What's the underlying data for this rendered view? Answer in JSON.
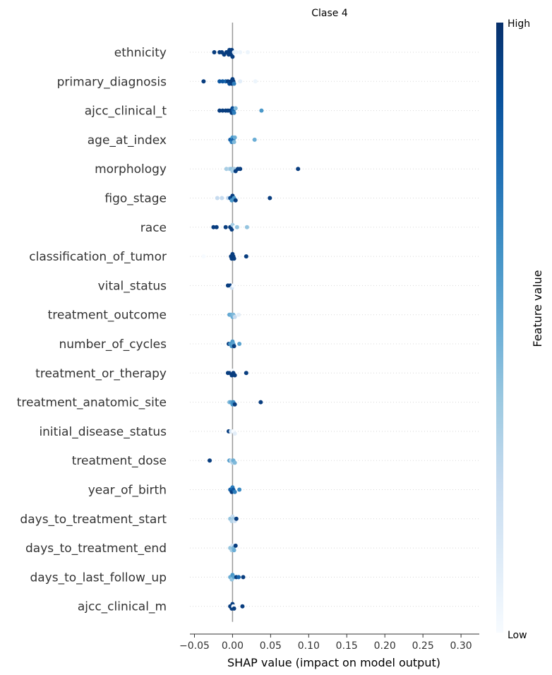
{
  "chart_data": {
    "type": "scatter",
    "title": "Clase 4",
    "xlabel": "SHAP value (impact on model output)",
    "xlim": [
      -0.056,
      0.324
    ],
    "xticks": [
      -0.05,
      0.0,
      0.05,
      0.1,
      0.15,
      0.2,
      0.25,
      0.3
    ],
    "xtick_labels": [
      "−0.05",
      "0.00",
      "0.05",
      "0.10",
      "0.15",
      "0.20",
      "0.25",
      "0.30"
    ],
    "grid": false,
    "colorbar": {
      "label": "Feature value",
      "high_label": "High",
      "low_label": "Low",
      "colors": [
        "#f7fbff",
        "#deebf7",
        "#c6dbef",
        "#9ecae1",
        "#6baed6",
        "#4292c6",
        "#2171b5",
        "#08519c",
        "#08306b"
      ]
    },
    "features": [
      {
        "name": "ethnicity",
        "points": [
          {
            "x": -0.024,
            "v": 0.95
          },
          {
            "x": -0.017,
            "v": 0.95
          },
          {
            "x": -0.014,
            "v": 0.95
          },
          {
            "x": -0.011,
            "v": 0.95
          },
          {
            "x": -0.008,
            "v": 0.95
          },
          {
            "x": -0.006,
            "v": 0.95
          },
          {
            "x": -0.005,
            "v": 0.95
          },
          {
            "x": -0.004,
            "v": 0.95
          },
          {
            "x": -0.003,
            "v": 0.95
          },
          {
            "x": -0.002,
            "v": 0.95
          },
          {
            "x": -0.001,
            "v": 0.95
          },
          {
            "x": 0.0,
            "v": 0.95
          },
          {
            "x": 0.002,
            "v": 0.1
          },
          {
            "x": 0.005,
            "v": 0.05
          },
          {
            "x": 0.01,
            "v": 0.05
          },
          {
            "x": 0.02,
            "v": 0.05
          }
        ]
      },
      {
        "name": "primary_diagnosis",
        "points": [
          {
            "x": -0.038,
            "v": 0.95
          },
          {
            "x": -0.017,
            "v": 0.85
          },
          {
            "x": -0.013,
            "v": 0.85
          },
          {
            "x": -0.009,
            "v": 0.8
          },
          {
            "x": -0.006,
            "v": 0.95
          },
          {
            "x": -0.004,
            "v": 0.9
          },
          {
            "x": -0.002,
            "v": 0.95
          },
          {
            "x": -0.001,
            "v": 0.95
          },
          {
            "x": 0.0,
            "v": 0.95
          },
          {
            "x": 0.001,
            "v": 0.95
          },
          {
            "x": 0.002,
            "v": 0.7
          },
          {
            "x": 0.01,
            "v": 0.1
          },
          {
            "x": 0.03,
            "v": 0.05
          }
        ]
      },
      {
        "name": "ajcc_clinical_t",
        "points": [
          {
            "x": -0.017,
            "v": 0.95
          },
          {
            "x": -0.013,
            "v": 0.95
          },
          {
            "x": -0.009,
            "v": 0.95
          },
          {
            "x": -0.006,
            "v": 0.95
          },
          {
            "x": -0.003,
            "v": 0.95
          },
          {
            "x": -0.001,
            "v": 0.95
          },
          {
            "x": 0.0,
            "v": 0.9
          },
          {
            "x": 0.001,
            "v": 0.8
          },
          {
            "x": 0.002,
            "v": 0.7
          },
          {
            "x": 0.004,
            "v": 0.45
          },
          {
            "x": 0.038,
            "v": 0.6
          }
        ]
      },
      {
        "name": "age_at_index",
        "points": [
          {
            "x": -0.003,
            "v": 0.8
          },
          {
            "x": -0.001,
            "v": 0.7
          },
          {
            "x": 0.0,
            "v": 0.6
          },
          {
            "x": 0.001,
            "v": 0.8
          },
          {
            "x": 0.002,
            "v": 0.45
          },
          {
            "x": 0.003,
            "v": 0.5
          },
          {
            "x": 0.029,
            "v": 0.5
          }
        ]
      },
      {
        "name": "morphology",
        "points": [
          {
            "x": -0.008,
            "v": 0.35
          },
          {
            "x": -0.004,
            "v": 0.3
          },
          {
            "x": -0.002,
            "v": 0.4
          },
          {
            "x": 0.0,
            "v": 0.35
          },
          {
            "x": 0.002,
            "v": 0.35
          },
          {
            "x": 0.004,
            "v": 0.95
          },
          {
            "x": 0.007,
            "v": 0.95
          },
          {
            "x": 0.01,
            "v": 0.95
          },
          {
            "x": 0.086,
            "v": 0.95
          }
        ]
      },
      {
        "name": "figo_stage",
        "points": [
          {
            "x": -0.02,
            "v": 0.25
          },
          {
            "x": -0.014,
            "v": 0.25
          },
          {
            "x": -0.006,
            "v": 0.25
          },
          {
            "x": -0.003,
            "v": 0.9
          },
          {
            "x": -0.001,
            "v": 0.6
          },
          {
            "x": 0.0,
            "v": 0.95
          },
          {
            "x": 0.002,
            "v": 0.6
          },
          {
            "x": 0.004,
            "v": 0.95
          },
          {
            "x": 0.049,
            "v": 0.95
          }
        ]
      },
      {
        "name": "race",
        "points": [
          {
            "x": -0.025,
            "v": 0.95
          },
          {
            "x": -0.021,
            "v": 0.95
          },
          {
            "x": -0.009,
            "v": 0.95
          },
          {
            "x": -0.003,
            "v": 0.95
          },
          {
            "x": -0.001,
            "v": 0.95
          },
          {
            "x": 0.0,
            "v": 0.35
          },
          {
            "x": 0.003,
            "v": 0.0
          },
          {
            "x": 0.006,
            "v": 0.4
          },
          {
            "x": 0.019,
            "v": 0.4
          }
        ]
      },
      {
        "name": "classification_of_tumor",
        "points": [
          {
            "x": -0.038,
            "v": 0.0
          },
          {
            "x": -0.002,
            "v": 0.95
          },
          {
            "x": -0.001,
            "v": 0.95
          },
          {
            "x": 0.0,
            "v": 0.95
          },
          {
            "x": 0.001,
            "v": 0.95
          },
          {
            "x": 0.002,
            "v": 0.95
          },
          {
            "x": 0.018,
            "v": 0.95
          }
        ]
      },
      {
        "name": "vital_status",
        "points": [
          {
            "x": -0.006,
            "v": 0.95
          },
          {
            "x": -0.003,
            "v": 0.95
          },
          {
            "x": -0.001,
            "v": 0.2
          },
          {
            "x": 0.001,
            "v": 0.0
          }
        ]
      },
      {
        "name": "treatment_outcome",
        "points": [
          {
            "x": -0.004,
            "v": 0.55
          },
          {
            "x": -0.002,
            "v": 0.5
          },
          {
            "x": 0.0,
            "v": 0.5
          },
          {
            "x": 0.001,
            "v": 0.45
          },
          {
            "x": 0.003,
            "v": 0.25
          },
          {
            "x": 0.008,
            "v": 0.1
          }
        ]
      },
      {
        "name": "number_of_cycles",
        "points": [
          {
            "x": -0.005,
            "v": 0.95
          },
          {
            "x": -0.003,
            "v": 0.6
          },
          {
            "x": -0.001,
            "v": 0.6
          },
          {
            "x": 0.0,
            "v": 0.6
          },
          {
            "x": 0.001,
            "v": 0.55
          },
          {
            "x": 0.002,
            "v": 0.95
          },
          {
            "x": 0.009,
            "v": 0.55
          }
        ]
      },
      {
        "name": "treatment_or_therapy",
        "points": [
          {
            "x": -0.006,
            "v": 0.95
          },
          {
            "x": -0.003,
            "v": 0.95
          },
          {
            "x": -0.001,
            "v": 0.95
          },
          {
            "x": 0.0,
            "v": 0.0
          },
          {
            "x": 0.001,
            "v": 0.95
          },
          {
            "x": 0.003,
            "v": 0.95
          },
          {
            "x": 0.018,
            "v": 0.95
          }
        ]
      },
      {
        "name": "treatment_anatomic_site",
        "points": [
          {
            "x": -0.004,
            "v": 0.45
          },
          {
            "x": -0.002,
            "v": 0.55
          },
          {
            "x": 0.0,
            "v": 0.6
          },
          {
            "x": 0.001,
            "v": 0.65
          },
          {
            "x": 0.003,
            "v": 0.95
          },
          {
            "x": 0.037,
            "v": 0.95
          }
        ]
      },
      {
        "name": "initial_disease_status",
        "points": [
          {
            "x": -0.005,
            "v": 0.95
          },
          {
            "x": -0.002,
            "v": 0.15
          },
          {
            "x": 0.001,
            "v": 0.0
          },
          {
            "x": 0.003,
            "v": 0.1
          }
        ]
      },
      {
        "name": "treatment_dose",
        "points": [
          {
            "x": -0.03,
            "v": 0.95
          },
          {
            "x": -0.004,
            "v": 0.6
          },
          {
            "x": -0.002,
            "v": 0.3
          },
          {
            "x": 0.0,
            "v": 0.3
          },
          {
            "x": 0.001,
            "v": 0.5
          },
          {
            "x": 0.003,
            "v": 0.45
          }
        ]
      },
      {
        "name": "year_of_birth",
        "points": [
          {
            "x": -0.003,
            "v": 0.8
          },
          {
            "x": -0.001,
            "v": 0.95
          },
          {
            "x": 0.0,
            "v": 0.7
          },
          {
            "x": 0.001,
            "v": 0.85
          },
          {
            "x": 0.003,
            "v": 0.7
          },
          {
            "x": 0.009,
            "v": 0.65
          }
        ]
      },
      {
        "name": "days_to_treatment_start",
        "points": [
          {
            "x": -0.003,
            "v": 0.4
          },
          {
            "x": -0.001,
            "v": 0.3
          },
          {
            "x": 0.0,
            "v": 0.25
          },
          {
            "x": 0.001,
            "v": 0.35
          },
          {
            "x": 0.003,
            "v": 0.2
          },
          {
            "x": 0.005,
            "v": 0.95
          }
        ]
      },
      {
        "name": "days_to_treatment_end",
        "points": [
          {
            "x": -0.003,
            "v": 0.4
          },
          {
            "x": -0.001,
            "v": 0.35
          },
          {
            "x": 0.0,
            "v": 0.2
          },
          {
            "x": 0.001,
            "v": 0.45
          },
          {
            "x": 0.002,
            "v": 0.5
          },
          {
            "x": 0.004,
            "v": 0.95
          }
        ]
      },
      {
        "name": "days_to_last_follow_up",
        "points": [
          {
            "x": -0.003,
            "v": 0.5
          },
          {
            "x": -0.001,
            "v": 0.4
          },
          {
            "x": 0.0,
            "v": 0.6
          },
          {
            "x": 0.002,
            "v": 0.55
          },
          {
            "x": 0.005,
            "v": 0.95
          },
          {
            "x": 0.008,
            "v": 0.8
          },
          {
            "x": 0.014,
            "v": 0.95
          }
        ]
      },
      {
        "name": "ajcc_clinical_m",
        "points": [
          {
            "x": -0.003,
            "v": 0.95
          },
          {
            "x": -0.001,
            "v": 0.95
          },
          {
            "x": 0.0,
            "v": 0.95
          },
          {
            "x": 0.001,
            "v": 0.0
          },
          {
            "x": 0.002,
            "v": 0.95
          },
          {
            "x": 0.013,
            "v": 0.95
          }
        ]
      }
    ]
  }
}
